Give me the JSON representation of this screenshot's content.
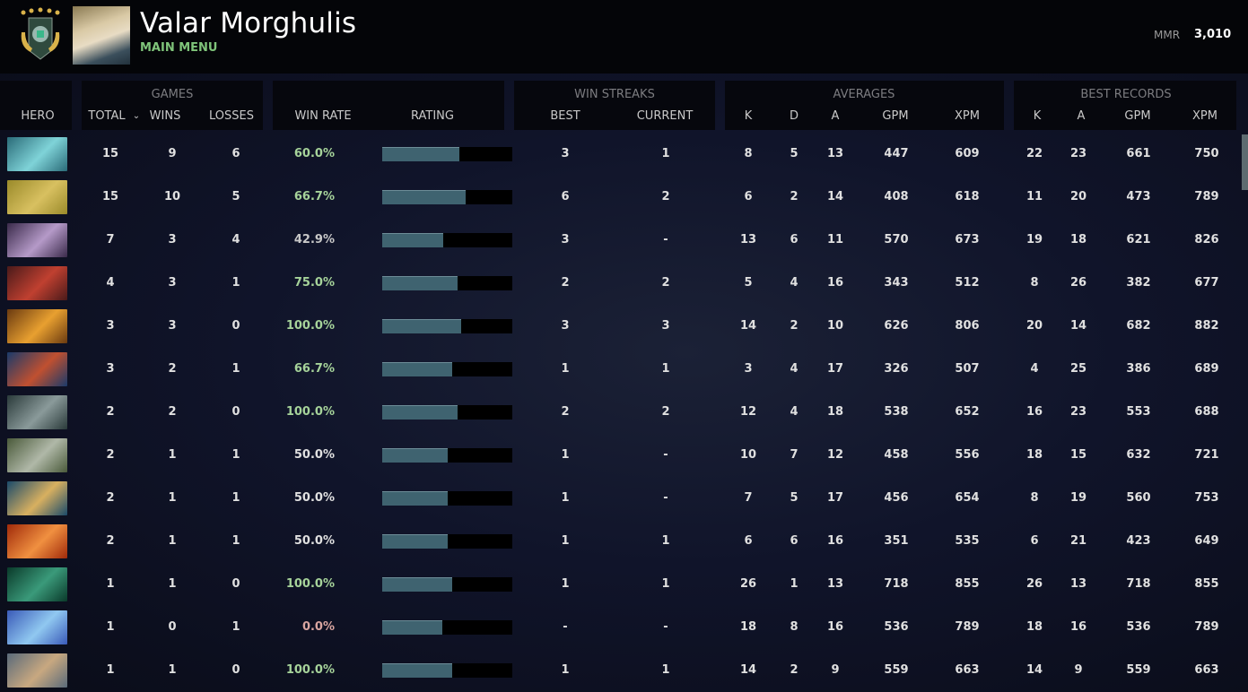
{
  "header": {
    "player_name": "Valar Morghulis",
    "main_menu": "MAIN MENU",
    "mmr_label": "MMR",
    "mmr_value": "3,010"
  },
  "groups": {
    "games": "GAMES",
    "win_streaks": "WIN STREAKS",
    "averages": "AVERAGES",
    "best_records": "BEST RECORDS"
  },
  "columns": {
    "hero": "HERO",
    "total": "TOTAL",
    "wins": "WINS",
    "losses": "LOSSES",
    "win_rate": "WIN RATE",
    "rating": "RATING",
    "best": "BEST",
    "current": "CURRENT",
    "k": "K",
    "d": "D",
    "a": "A",
    "gpm": "GPM",
    "xpm": "XPM",
    "best_k": "K",
    "best_a": "A",
    "best_gpm": "GPM",
    "best_xpm": "XPM",
    "sort_icon": "chevron-down-icon"
  },
  "colors": {
    "win_rate_high": "#a6d39a",
    "win_rate_even": "#e0e0e0",
    "win_rate_low": "#c8c8c8",
    "win_rate_zero": "#d9a5a0",
    "rating_fill": "#3f6370",
    "main_menu": "#7fc47a"
  },
  "rows": [
    {
      "hero_colors": [
        "#2a6b78",
        "#7fd3d8"
      ],
      "total": "15",
      "wins": "9",
      "losses": "6",
      "win_rate": "60.0%",
      "rating": 0.59,
      "best": "3",
      "current": "1",
      "k": "8",
      "d": "5",
      "a": "13",
      "gpm": "447",
      "xpm": "609",
      "best_k": "22",
      "best_a": "23",
      "best_gpm": "661",
      "best_xpm": "750"
    },
    {
      "hero_colors": [
        "#9a8a2a",
        "#d8c060"
      ],
      "total": "15",
      "wins": "10",
      "losses": "5",
      "win_rate": "66.7%",
      "rating": 0.64,
      "best": "6",
      "current": "2",
      "k": "6",
      "d": "2",
      "a": "14",
      "gpm": "408",
      "xpm": "618",
      "best_k": "11",
      "best_a": "20",
      "best_gpm": "473",
      "best_xpm": "789"
    },
    {
      "hero_colors": [
        "#3a2a4a",
        "#b59ac8"
      ],
      "total": "7",
      "wins": "3",
      "losses": "4",
      "win_rate": "42.9%",
      "rating": 0.47,
      "best": "3",
      "current": "-",
      "k": "13",
      "d": "6",
      "a": "11",
      "gpm": "570",
      "xpm": "673",
      "best_k": "19",
      "best_a": "18",
      "best_gpm": "621",
      "best_xpm": "826"
    },
    {
      "hero_colors": [
        "#4a1a1a",
        "#c04030"
      ],
      "total": "4",
      "wins": "3",
      "losses": "1",
      "win_rate": "75.0%",
      "rating": 0.58,
      "best": "2",
      "current": "2",
      "k": "5",
      "d": "4",
      "a": "16",
      "gpm": "343",
      "xpm": "512",
      "best_k": "8",
      "best_a": "26",
      "best_gpm": "382",
      "best_xpm": "677"
    },
    {
      "hero_colors": [
        "#6a3a10",
        "#e8a030"
      ],
      "total": "3",
      "wins": "3",
      "losses": "0",
      "win_rate": "100.0%",
      "rating": 0.61,
      "best": "3",
      "current": "3",
      "k": "14",
      "d": "2",
      "a": "10",
      "gpm": "626",
      "xpm": "806",
      "best_k": "20",
      "best_a": "14",
      "best_gpm": "682",
      "best_xpm": "882"
    },
    {
      "hero_colors": [
        "#1a3a6a",
        "#c05030"
      ],
      "total": "3",
      "wins": "2",
      "losses": "1",
      "win_rate": "66.7%",
      "rating": 0.54,
      "best": "1",
      "current": "1",
      "k": "3",
      "d": "4",
      "a": "17",
      "gpm": "326",
      "xpm": "507",
      "best_k": "4",
      "best_a": "25",
      "best_gpm": "386",
      "best_xpm": "689"
    },
    {
      "hero_colors": [
        "#2a3a3a",
        "#8a9a9a"
      ],
      "total": "2",
      "wins": "2",
      "losses": "0",
      "win_rate": "100.0%",
      "rating": 0.58,
      "best": "2",
      "current": "2",
      "k": "12",
      "d": "4",
      "a": "18",
      "gpm": "538",
      "xpm": "652",
      "best_k": "16",
      "best_a": "23",
      "best_gpm": "553",
      "best_xpm": "688"
    },
    {
      "hero_colors": [
        "#4a5a3a",
        "#b0b8a8"
      ],
      "total": "2",
      "wins": "1",
      "losses": "1",
      "win_rate": "50.0%",
      "rating": 0.5,
      "best": "1",
      "current": "-",
      "k": "10",
      "d": "7",
      "a": "12",
      "gpm": "458",
      "xpm": "556",
      "best_k": "18",
      "best_a": "15",
      "best_gpm": "632",
      "best_xpm": "721"
    },
    {
      "hero_colors": [
        "#1a4a6a",
        "#d8b060"
      ],
      "total": "2",
      "wins": "1",
      "losses": "1",
      "win_rate": "50.0%",
      "rating": 0.5,
      "best": "1",
      "current": "-",
      "k": "7",
      "d": "5",
      "a": "17",
      "gpm": "456",
      "xpm": "654",
      "best_k": "8",
      "best_a": "19",
      "best_gpm": "560",
      "best_xpm": "753"
    },
    {
      "hero_colors": [
        "#a02a0a",
        "#f09040"
      ],
      "total": "2",
      "wins": "1",
      "losses": "1",
      "win_rate": "50.0%",
      "rating": 0.5,
      "best": "1",
      "current": "1",
      "k": "6",
      "d": "6",
      "a": "16",
      "gpm": "351",
      "xpm": "535",
      "best_k": "6",
      "best_a": "21",
      "best_gpm": "423",
      "best_xpm": "649"
    },
    {
      "hero_colors": [
        "#0a3a2a",
        "#3a9a7a"
      ],
      "total": "1",
      "wins": "1",
      "losses": "0",
      "win_rate": "100.0%",
      "rating": 0.54,
      "best": "1",
      "current": "1",
      "k": "26",
      "d": "1",
      "a": "13",
      "gpm": "718",
      "xpm": "855",
      "best_k": "26",
      "best_a": "13",
      "best_gpm": "718",
      "best_xpm": "855"
    },
    {
      "hero_colors": [
        "#3a5ab8",
        "#90c8f0"
      ],
      "total": "1",
      "wins": "0",
      "losses": "1",
      "win_rate": "0.0%",
      "rating": 0.46,
      "best": "-",
      "current": "-",
      "k": "18",
      "d": "8",
      "a": "16",
      "gpm": "536",
      "xpm": "789",
      "best_k": "18",
      "best_a": "16",
      "best_gpm": "536",
      "best_xpm": "789"
    },
    {
      "hero_colors": [
        "#5a6a7a",
        "#c8a880"
      ],
      "total": "1",
      "wins": "1",
      "losses": "0",
      "win_rate": "100.0%",
      "rating": 0.54,
      "best": "1",
      "current": "1",
      "k": "14",
      "d": "2",
      "a": "9",
      "gpm": "559",
      "xpm": "663",
      "best_k": "14",
      "best_a": "9",
      "best_gpm": "559",
      "best_xpm": "663"
    }
  ]
}
